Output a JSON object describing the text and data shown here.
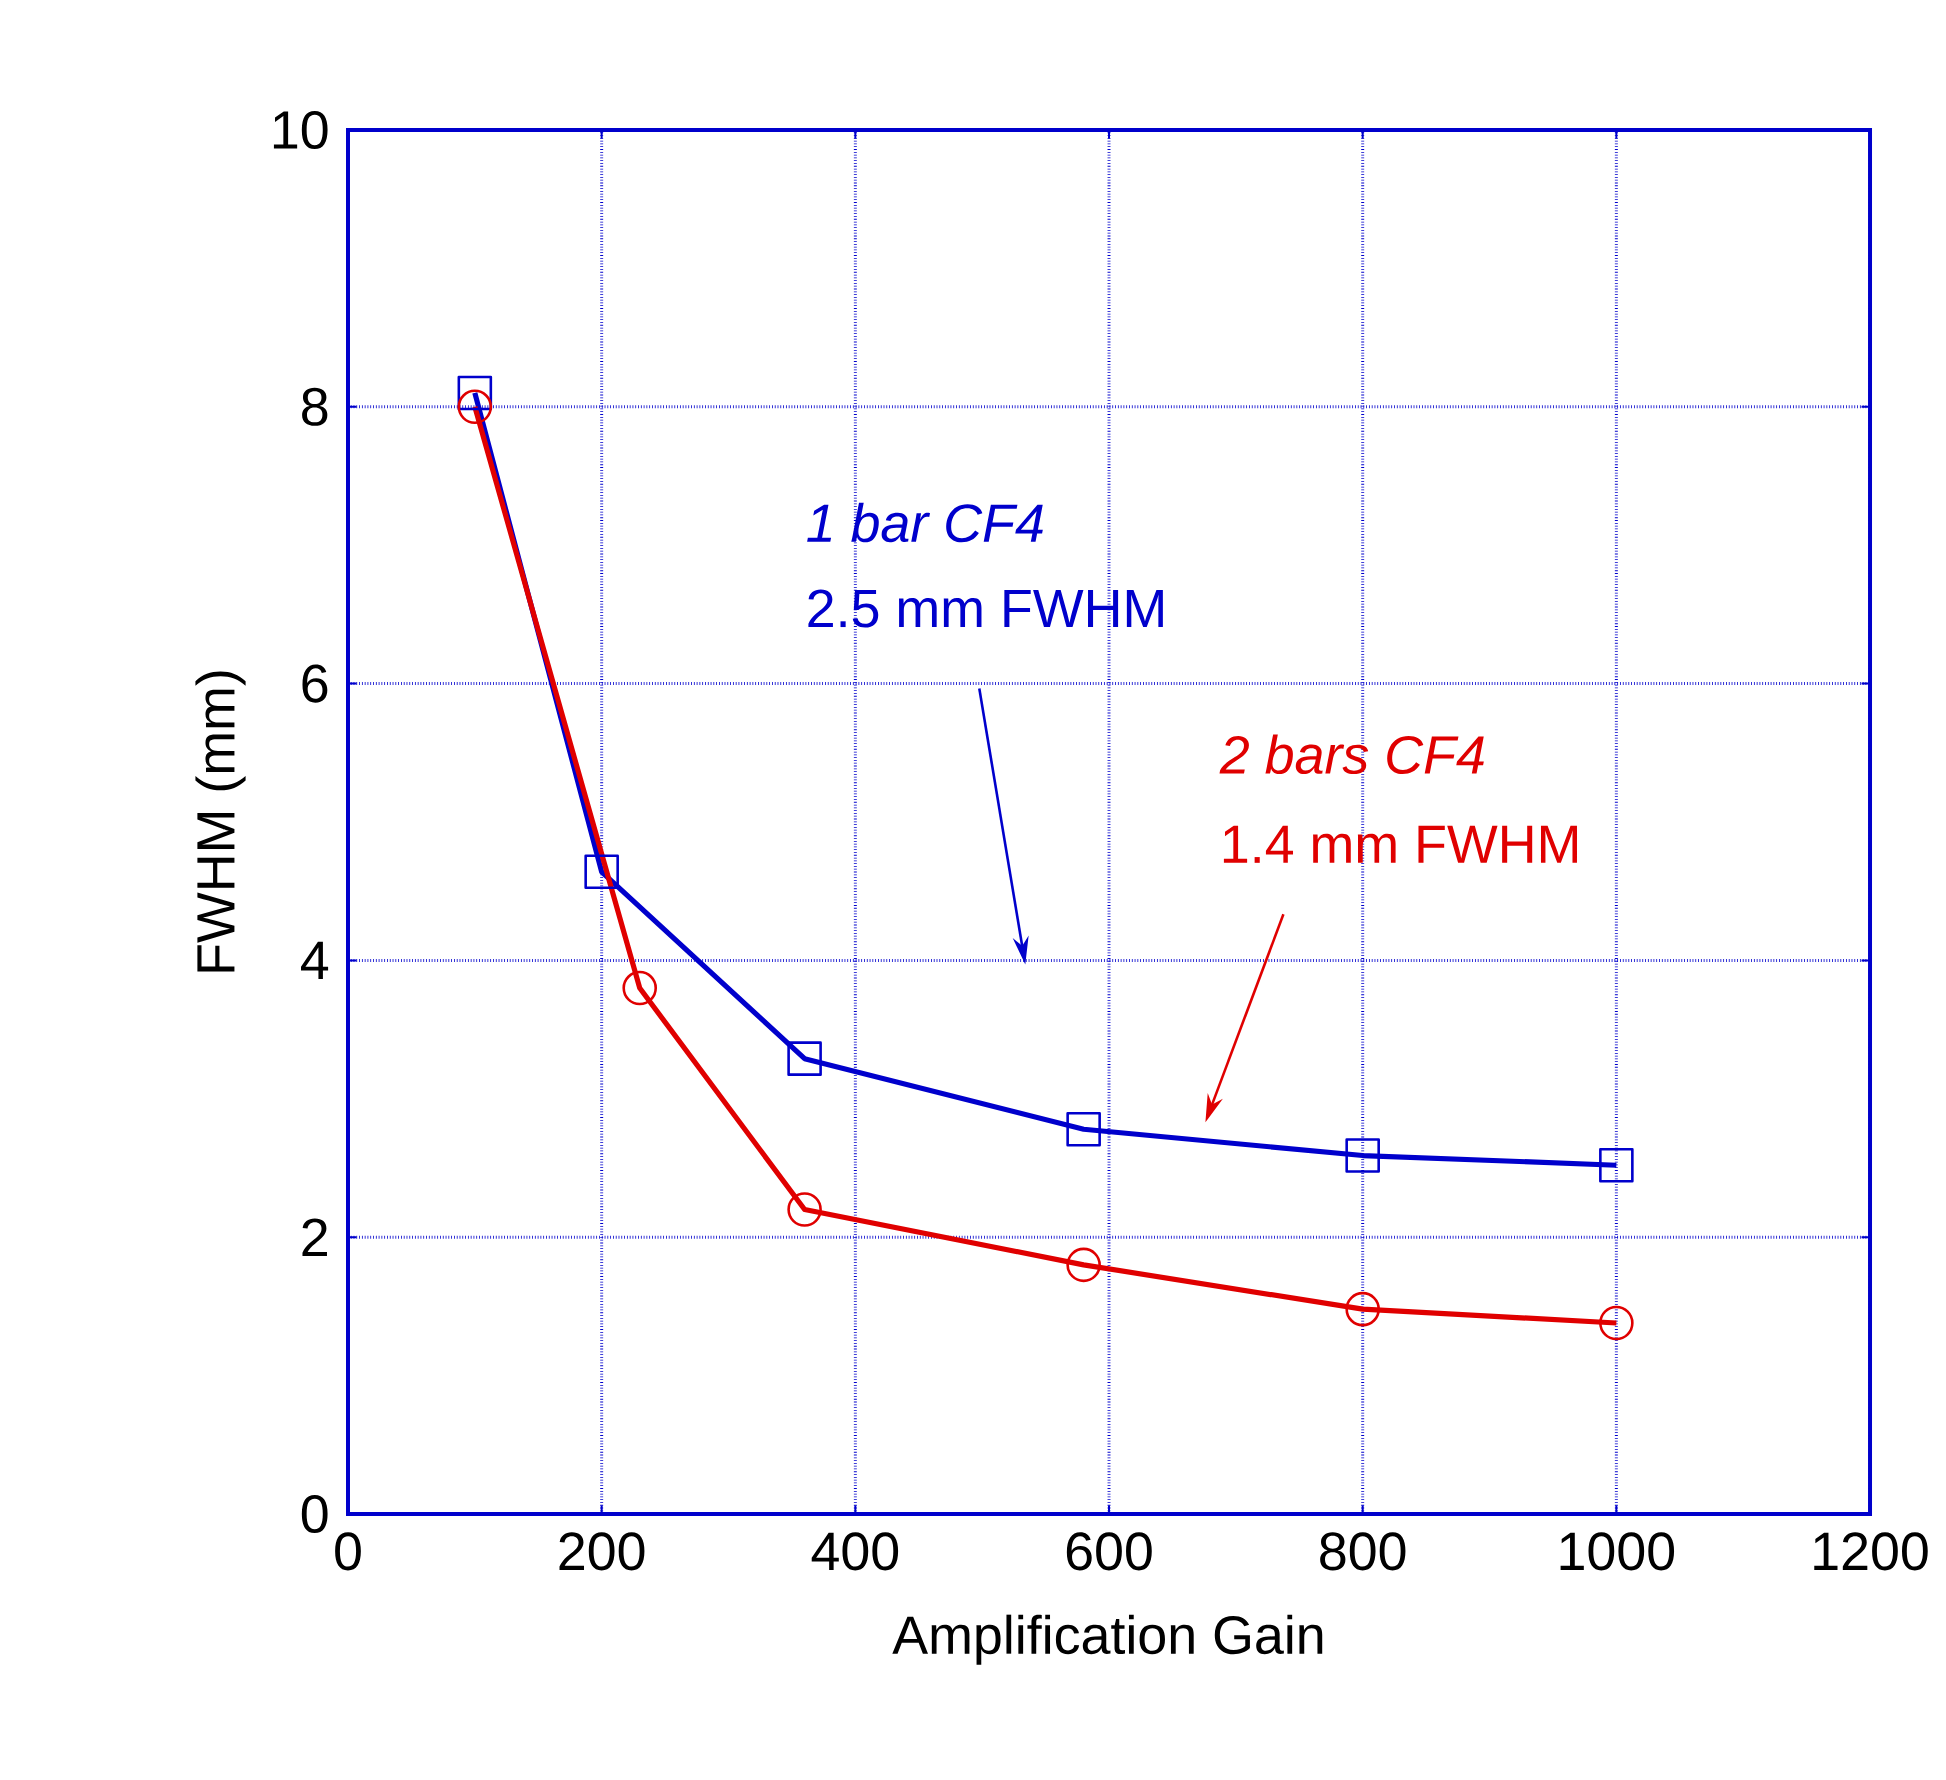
{
  "chart_data": {
    "type": "line",
    "xlabel": "Amplification Gain",
    "ylabel": "FWHM (mm)",
    "xlim": [
      0,
      1200
    ],
    "xticks": [
      0,
      200,
      400,
      600,
      800,
      1000,
      1200
    ],
    "ylim": [
      0,
      10
    ],
    "yticks": [
      0,
      2,
      4,
      6,
      8,
      10
    ],
    "grid": true,
    "line_style": "solid",
    "series": [
      {
        "color": "#0000cc",
        "marker": "square",
        "x": [
          100,
          200,
          360,
          580,
          800,
          1000
        ],
        "values": [
          8.1,
          4.64,
          3.29,
          2.78,
          2.59,
          2.52
        ]
      },
      {
        "color": "#e00000",
        "marker": "circle",
        "x": [
          100,
          230,
          360,
          580,
          800,
          1000
        ],
        "values": [
          8.0,
          3.8,
          2.2,
          1.8,
          1.48,
          1.38
        ]
      }
    ],
    "annotations": [
      "1 bar CF4",
      "2.5 mm FWHM",
      "2 bars CF4",
      "1.4 mm FWHM"
    ]
  }
}
